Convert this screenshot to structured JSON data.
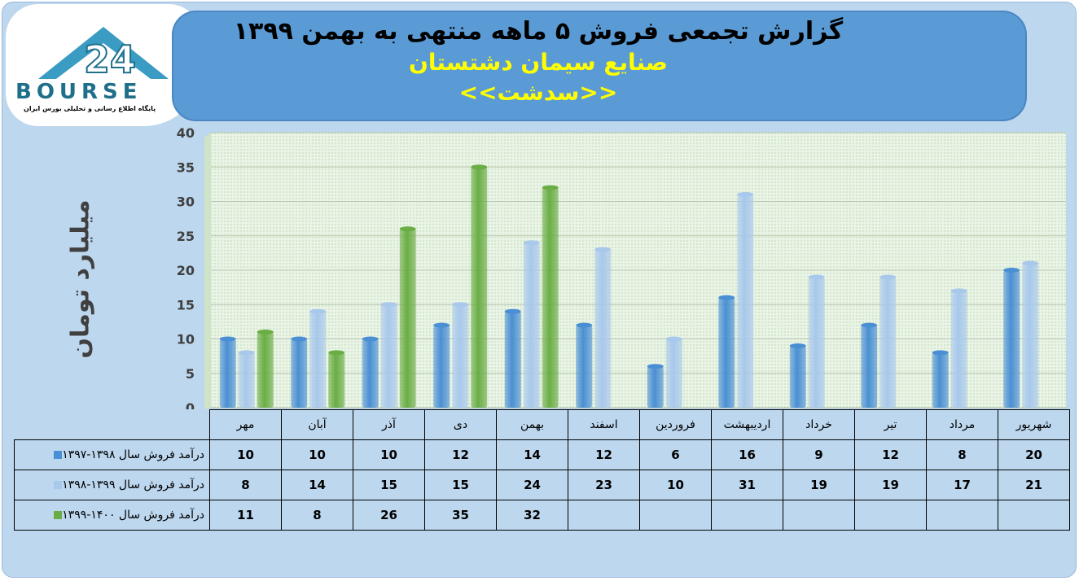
{
  "header": {
    "title": "گزارش تجمعی فروش ۵ ماهه منتهی به بهمن ۱۳۹۹",
    "subtitle": "صنایع سیمان دشتستان",
    "ticker": "<<سدشت>>"
  },
  "logo": {
    "word": "BOURSE",
    "tagline": "پایگاه اطلاع رسانی و تحلیلی بورس ایران",
    "mark": "24"
  },
  "colors": {
    "series1": "#4a8fd4",
    "series2": "#a8c8ec",
    "series3": "#6aad45"
  },
  "chart_data": {
    "type": "bar",
    "ylabel": "میلیارد تومان",
    "ylim": [
      0,
      40
    ],
    "yticks": [
      0,
      5,
      10,
      15,
      20,
      25,
      30,
      35,
      40
    ],
    "categories": [
      "مهر",
      "آبان",
      "آذر",
      "دی",
      "بهمن",
      "اسفند",
      "فروردین",
      "اردیبهشت",
      "خرداد",
      "تیر",
      "مرداد",
      "شهریور"
    ],
    "series": [
      {
        "name": "درآمد فروش سال ۱۳۹۸-۱۳۹۷",
        "values": [
          10,
          10,
          10,
          12,
          14,
          12,
          6,
          16,
          9,
          12,
          8,
          20
        ]
      },
      {
        "name": "درآمد فروش سال ۱۳۹۹-۱۳۹۸",
        "values": [
          8,
          14,
          15,
          15,
          24,
          23,
          10,
          31,
          19,
          19,
          17,
          21
        ]
      },
      {
        "name": "درآمد فروش سال ۱۴۰۰-۱۳۹۹",
        "values": [
          11,
          8,
          26,
          35,
          32,
          null,
          null,
          null,
          null,
          null,
          null,
          null
        ]
      }
    ],
    "grid": true,
    "legend": "table-left"
  }
}
